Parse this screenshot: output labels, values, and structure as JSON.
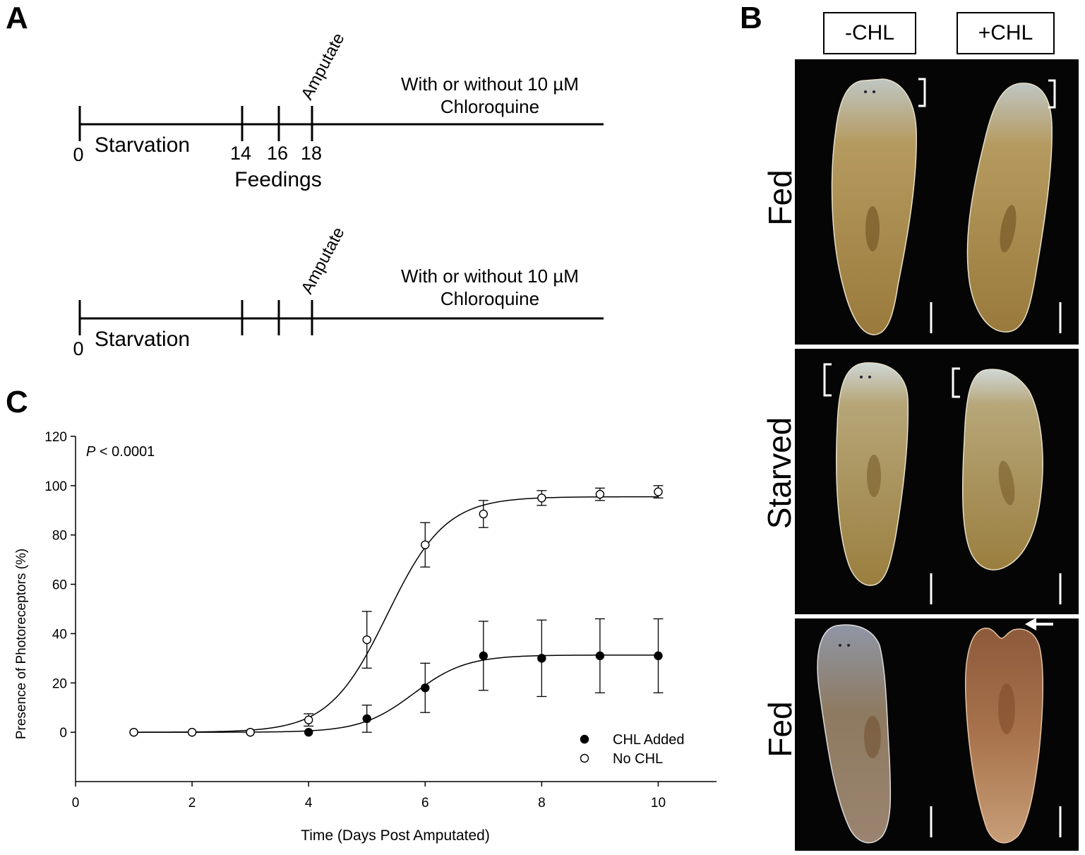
{
  "panel_a": {
    "letter": "A",
    "timeline1": {
      "start_tick": "0",
      "phase_label": "Starvation",
      "feeding_ticks": [
        "14",
        "16",
        "18"
      ],
      "feedings_label": "Feedings",
      "amputate_label": "Amputate",
      "treatment_line1": "With or without 10 µM",
      "treatment_line2": "Chloroquine"
    },
    "timeline2": {
      "start_tick": "0",
      "phase_label": "Starvation",
      "amputate_label": "Amputate",
      "treatment_line1": "With or without 10 µM",
      "treatment_line2": "Chloroquine"
    }
  },
  "panel_b": {
    "letter": "B",
    "col_headers": [
      "-CHL",
      "+CHL"
    ],
    "row_labels": [
      "Fed",
      "Starved",
      "Fed"
    ],
    "colors": {
      "background": "#050505",
      "worm_fed": "#9a7a3c",
      "worm_light": "#c7b27a",
      "worm_pink": "#a8734c"
    }
  },
  "panel_c": {
    "letter": "C",
    "p_value_italic": "P",
    "p_value_rest": " < 0.0001",
    "legend": [
      "CHL Added",
      "No CHL"
    ]
  },
  "chart_data": {
    "type": "scatter",
    "title": "",
    "xlabel": "Time (Days Post Amputated)",
    "ylabel": "Presence of Photoreceptors (%)",
    "xlim": [
      0,
      11
    ],
    "ylim": [
      -20,
      120
    ],
    "xticks": [
      0,
      2,
      4,
      6,
      8,
      10
    ],
    "yticks": [
      0,
      20,
      40,
      60,
      80,
      100,
      120
    ],
    "legend_position": "bottom-right",
    "grid": false,
    "series": [
      {
        "name": "CHL Added",
        "marker": "filled-circle",
        "x": [
          1,
          2,
          3,
          4,
          5,
          6,
          7,
          8,
          9,
          10
        ],
        "y": [
          0,
          0,
          0,
          0,
          5.5,
          18,
          31,
          30,
          31,
          31
        ],
        "error": [
          0,
          0,
          0,
          0,
          5.5,
          10,
          14,
          15.5,
          15,
          15
        ],
        "fit": {
          "type": "sigmoid",
          "top": 31.3,
          "x50": 5.8,
          "slope": 0.45
        }
      },
      {
        "name": "No CHL",
        "marker": "open-circle",
        "x": [
          1,
          2,
          3,
          4,
          5,
          6,
          7,
          8,
          9,
          10
        ],
        "y": [
          0,
          0,
          0,
          5,
          37.5,
          76,
          88.5,
          95,
          96.5,
          97.5
        ],
        "error": [
          0,
          0,
          0,
          2.5,
          11.5,
          9,
          5.5,
          3,
          2.5,
          2.5
        ],
        "fit": {
          "type": "sigmoid",
          "top": 95.5,
          "x50": 5.35,
          "slope": 0.5
        }
      }
    ]
  }
}
